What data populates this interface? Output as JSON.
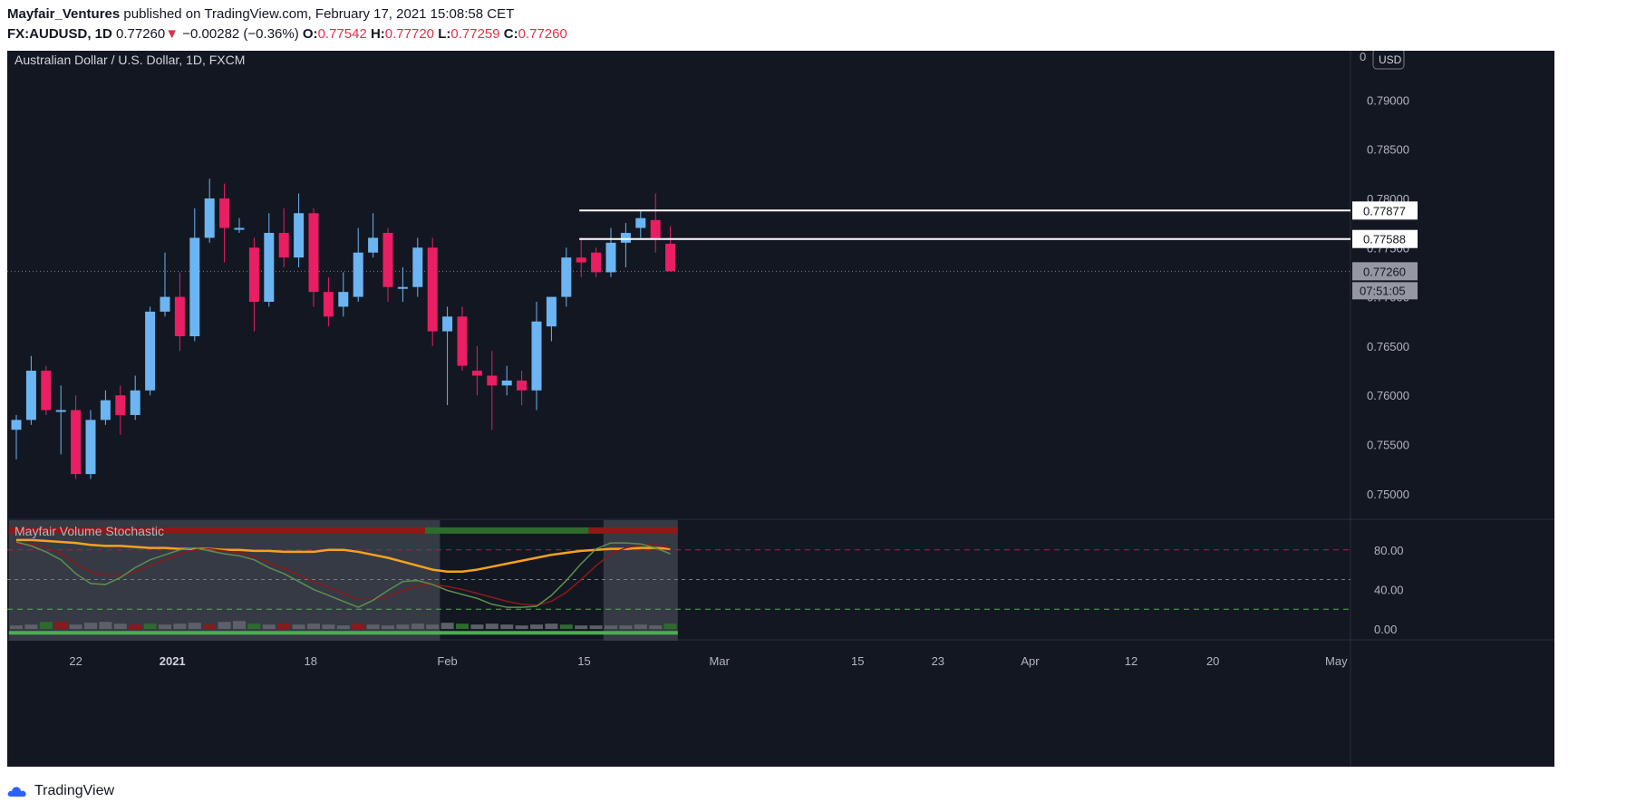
{
  "header": {
    "author": "Mayfair_Ventures",
    "published_text": "published on TradingView.com, February 17, 2021 15:08:58 CET",
    "symbol": "FX:AUDUSD, 1D",
    "last": "0.77260",
    "arrow": "▼",
    "change": "−0.00282 (−0.36%)",
    "o_label": "O:",
    "o": "0.77542",
    "h_label": "H:",
    "h": "0.77720",
    "l_label": "L:",
    "l": "0.77259",
    "c_label": "C:",
    "c": "0.77260"
  },
  "footer": {
    "brand": "TradingView"
  },
  "colors": {
    "background": "#131722",
    "up": "#6bb5f2",
    "down": "#e91e63",
    "grid": "#2a2e39",
    "text": "#b2b5be"
  },
  "chart_data": [
    {
      "type": "candlestick",
      "title": "Australian Dollar / U.S. Dollar, 1D, FXCM",
      "currency": "USD",
      "y_ticks": [
        "0.75000",
        "0.75500",
        "0.76000",
        "0.76500",
        "0.77000",
        "0.77500",
        "0.78000",
        "0.78500",
        "0.79000"
      ],
      "y_top_partial": "0",
      "ylim": [
        0.7475,
        0.795
      ],
      "x_ticks": [
        "22",
        "2021",
        "18",
        "Feb",
        "15",
        "Mar",
        "15",
        "23",
        "Apr",
        "12",
        "20",
        "May"
      ],
      "candles": [
        {
          "o": 0.7565,
          "h": 0.758,
          "l": 0.7535,
          "c": 0.7575
        },
        {
          "o": 0.7575,
          "h": 0.764,
          "l": 0.757,
          "c": 0.7625
        },
        {
          "o": 0.7625,
          "h": 0.763,
          "l": 0.758,
          "c": 0.7585
        },
        {
          "o": 0.7585,
          "h": 0.761,
          "l": 0.754,
          "c": 0.7585
        },
        {
          "o": 0.7585,
          "h": 0.76,
          "l": 0.7515,
          "c": 0.752
        },
        {
          "o": 0.752,
          "h": 0.7585,
          "l": 0.7515,
          "c": 0.7575
        },
        {
          "o": 0.7575,
          "h": 0.7605,
          "l": 0.757,
          "c": 0.7595
        },
        {
          "o": 0.76,
          "h": 0.761,
          "l": 0.756,
          "c": 0.758
        },
        {
          "o": 0.758,
          "h": 0.762,
          "l": 0.7575,
          "c": 0.7605
        },
        {
          "o": 0.7605,
          "h": 0.769,
          "l": 0.76,
          "c": 0.7685
        },
        {
          "o": 0.7685,
          "h": 0.7745,
          "l": 0.768,
          "c": 0.77
        },
        {
          "o": 0.77,
          "h": 0.7725,
          "l": 0.7645,
          "c": 0.766
        },
        {
          "o": 0.766,
          "h": 0.779,
          "l": 0.7655,
          "c": 0.776
        },
        {
          "o": 0.776,
          "h": 0.782,
          "l": 0.7755,
          "c": 0.78
        },
        {
          "o": 0.78,
          "h": 0.7815,
          "l": 0.7735,
          "c": 0.777
        },
        {
          "o": 0.777,
          "h": 0.778,
          "l": 0.7765,
          "c": 0.777
        },
        {
          "o": 0.775,
          "h": 0.776,
          "l": 0.7665,
          "c": 0.7695
        },
        {
          "o": 0.7695,
          "h": 0.7785,
          "l": 0.769,
          "c": 0.7765
        },
        {
          "o": 0.7765,
          "h": 0.779,
          "l": 0.773,
          "c": 0.774
        },
        {
          "o": 0.774,
          "h": 0.7805,
          "l": 0.773,
          "c": 0.7785
        },
        {
          "o": 0.7785,
          "h": 0.779,
          "l": 0.769,
          "c": 0.7705
        },
        {
          "o": 0.7705,
          "h": 0.772,
          "l": 0.767,
          "c": 0.768
        },
        {
          "o": 0.769,
          "h": 0.7725,
          "l": 0.768,
          "c": 0.7705
        },
        {
          "o": 0.77,
          "h": 0.777,
          "l": 0.7695,
          "c": 0.7745
        },
        {
          "o": 0.7745,
          "h": 0.7785,
          "l": 0.774,
          "c": 0.776
        },
        {
          "o": 0.7765,
          "h": 0.777,
          "l": 0.7695,
          "c": 0.771
        },
        {
          "o": 0.771,
          "h": 0.773,
          "l": 0.7695,
          "c": 0.771
        },
        {
          "o": 0.771,
          "h": 0.776,
          "l": 0.77,
          "c": 0.775
        },
        {
          "o": 0.775,
          "h": 0.776,
          "l": 0.765,
          "c": 0.7665
        },
        {
          "o": 0.7665,
          "h": 0.769,
          "l": 0.759,
          "c": 0.768
        },
        {
          "o": 0.768,
          "h": 0.769,
          "l": 0.7625,
          "c": 0.763
        },
        {
          "o": 0.7625,
          "h": 0.765,
          "l": 0.76,
          "c": 0.762
        },
        {
          "o": 0.762,
          "h": 0.7645,
          "l": 0.7565,
          "c": 0.761
        },
        {
          "o": 0.761,
          "h": 0.763,
          "l": 0.76,
          "c": 0.7615
        },
        {
          "o": 0.7615,
          "h": 0.7625,
          "l": 0.759,
          "c": 0.7605
        },
        {
          "o": 0.7605,
          "h": 0.7695,
          "l": 0.7585,
          "c": 0.7675
        },
        {
          "o": 0.767,
          "h": 0.77,
          "l": 0.7655,
          "c": 0.77
        },
        {
          "o": 0.77,
          "h": 0.775,
          "l": 0.769,
          "c": 0.774
        },
        {
          "o": 0.774,
          "h": 0.776,
          "l": 0.772,
          "c": 0.7735
        },
        {
          "o": 0.7745,
          "h": 0.775,
          "l": 0.772,
          "c": 0.7725
        },
        {
          "o": 0.7725,
          "h": 0.777,
          "l": 0.772,
          "c": 0.7755
        },
        {
          "o": 0.7755,
          "h": 0.7775,
          "l": 0.773,
          "c": 0.7765
        },
        {
          "o": 0.777,
          "h": 0.7788,
          "l": 0.776,
          "c": 0.778
        },
        {
          "o": 0.7778,
          "h": 0.7805,
          "l": 0.7745,
          "c": 0.7758
        },
        {
          "o": 0.7754,
          "h": 0.7772,
          "l": 0.7726,
          "c": 0.7726
        }
      ],
      "horizontal_levels": [
        {
          "value": 0.77877,
          "label": "0.77877"
        },
        {
          "value": 0.77588,
          "label": "0.77588"
        }
      ],
      "last_price": {
        "value": 0.7726,
        "label": "0.77260",
        "countdown": "07:51:05"
      }
    },
    {
      "type": "indicator",
      "title": "Mayfair Volume Stochastic",
      "y_ticks": [
        "0.00",
        "40.00",
        "80.00"
      ],
      "ylim": [
        -10,
        110
      ],
      "levels": [
        80,
        50,
        20
      ],
      "k_line": [
        88,
        84,
        78,
        70,
        56,
        46,
        45,
        52,
        62,
        70,
        75,
        80,
        82,
        79,
        76,
        74,
        70,
        62,
        56,
        48,
        40,
        34,
        28,
        22,
        29,
        39,
        48,
        49,
        45,
        39,
        35,
        31,
        25,
        22,
        22,
        23,
        34,
        49,
        66,
        81,
        87,
        87,
        86,
        82,
        76
      ],
      "d_line": [
        86,
        86,
        83,
        76,
        66,
        58,
        54,
        54,
        58,
        64,
        70,
        76,
        80,
        81,
        79,
        77,
        73,
        67,
        61,
        55,
        48,
        42,
        36,
        30,
        30,
        33,
        39,
        44,
        45,
        43,
        40,
        36,
        32,
        28,
        25,
        24,
        28,
        37,
        50,
        64,
        76,
        82,
        85,
        85,
        82
      ],
      "signal_line": [
        90,
        90,
        89,
        88,
        87,
        85,
        84,
        84,
        83,
        82,
        82,
        81,
        81,
        81,
        80,
        80,
        79,
        79,
        78,
        78,
        78,
        80,
        80,
        78,
        75,
        72,
        68,
        64,
        60,
        58,
        58,
        60,
        63,
        66,
        69,
        72,
        75,
        77,
        79,
        80,
        81,
        81,
        82,
        82,
        81
      ],
      "volume": [
        4,
        5,
        8,
        8,
        5,
        7,
        8,
        6,
        5,
        6,
        5,
        6,
        7,
        5,
        8,
        9,
        6,
        5,
        6,
        5,
        6,
        5,
        4,
        6,
        5,
        4,
        5,
        6,
        5,
        7,
        6,
        5,
        6,
        5,
        4,
        5,
        6,
        5,
        4,
        4,
        4,
        4,
        5,
        4,
        6
      ],
      "shade_ranges": [
        [
          0,
          28
        ],
        [
          40,
          44
        ]
      ]
    }
  ]
}
